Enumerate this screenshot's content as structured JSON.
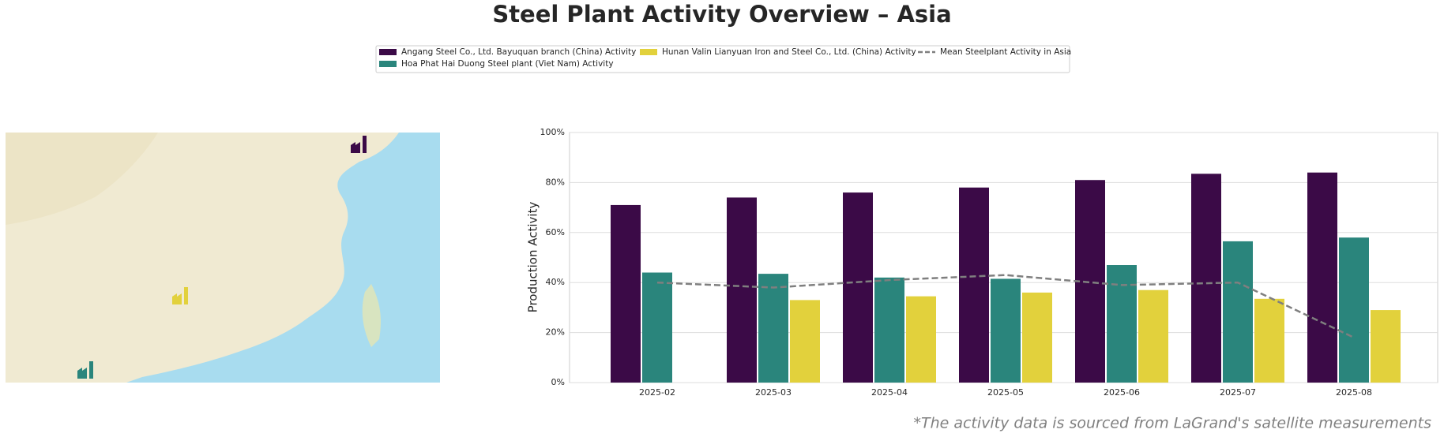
{
  "chart_data": {
    "type": "bar",
    "title": "Steel Plant Activity Overview – Asia",
    "ylabel": "Production Activity",
    "footnote": "*The activity data is sourced from LaGrand's satellite measurements",
    "categories": [
      "2025-02",
      "2025-03",
      "2025-04",
      "2025-05",
      "2025-06",
      "2025-07",
      "2025-08"
    ],
    "series": [
      {
        "name": "Angang Steel Co., Ltd. Bayuquan branch (China) Activity",
        "color": "#3b0a47",
        "values": [
          71,
          74,
          76,
          78,
          81,
          83.5,
          84
        ]
      },
      {
        "name": "Hoa Phat Hai Duong Steel plant (Viet Nam) Activity",
        "color": "#2a857c",
        "values": [
          44,
          43.5,
          42,
          41.5,
          47,
          56.5,
          58
        ]
      },
      {
        "name": "Hunan Valin Lianyuan Iron and Steel Co., Ltd. (China) Activity",
        "color": "#e2d13c",
        "values": [
          null,
          33,
          34.5,
          36,
          37,
          33.5,
          29
        ]
      },
      {
        "name": "Mean Steelplant Activity in Asia",
        "color": "#7f7f7f",
        "type": "line",
        "dashed": true,
        "values": [
          40,
          38,
          41,
          43,
          39,
          40,
          18
        ]
      }
    ],
    "ylim": [
      0,
      100
    ],
    "yticks": [
      {
        "value": 0,
        "label": "0%"
      },
      {
        "value": 20,
        "label": "20%"
      },
      {
        "value": 40,
        "label": "40%"
      },
      {
        "value": 60,
        "label": "60%"
      },
      {
        "value": 80,
        "label": "80%"
      },
      {
        "value": 100,
        "label": "100%"
      }
    ],
    "grid": true
  }
}
